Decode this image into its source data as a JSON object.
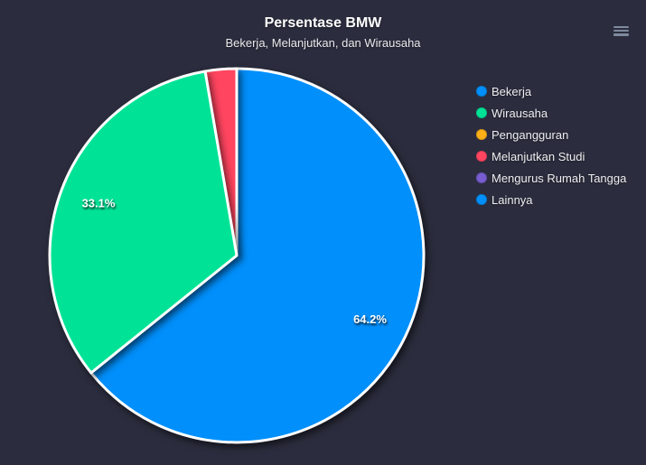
{
  "page": {
    "background_color": "#2b2d3e"
  },
  "icons": {
    "toolbar_menu": "hamburger-menu"
  },
  "chart_data": {
    "type": "pie",
    "title": "Persentase BMW",
    "subtitle": "Bekerja, Melanjutkan, dan Wirausaha",
    "labels": [
      "Bekerja",
      "Wirausaha",
      "Pengangguran",
      "Melanjutkan Studi",
      "Mengurus Rumah Tangga",
      "Lainnya"
    ],
    "values": [
      64.2,
      33.1,
      0,
      2.7,
      0,
      0
    ],
    "colors": [
      "#008FFB",
      "#00E396",
      "#FEB019",
      "#FF4560",
      "#775DD0",
      "#008FFB"
    ],
    "value_suffix": "%",
    "visible_data_labels": [
      "64.2%",
      "33.1%"
    ],
    "legend_position": "right",
    "start_angle_deg": 0,
    "direction": "clockwise",
    "min_angle_to_show_label_deg": 10,
    "slice_stroke_color": "#ffffff",
    "z_order": [
      0,
      3,
      1
    ]
  }
}
